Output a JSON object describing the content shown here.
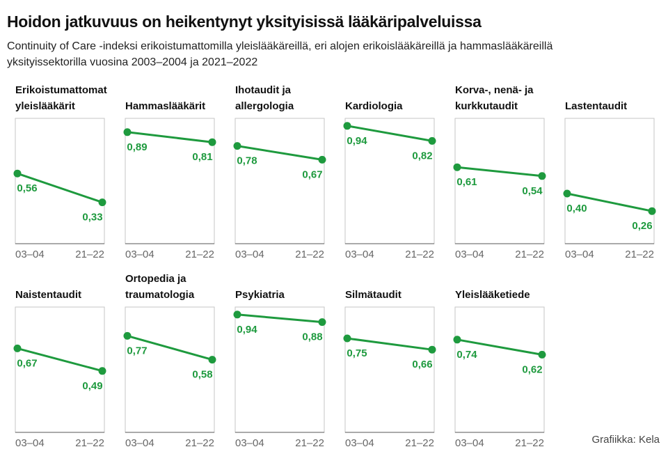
{
  "title": "Hoidon jatkuvuus on heikentynyt yksityisissä lääkäripalveluissa",
  "subtitle": "Continuity of Care -indeksi erikoistumattomilla yleislääkäreillä, eri alojen erikoislääkäreillä ja hammaslääkäreillä yksityissektorilla vuosina 2003–2004 ja 2021–2022",
  "source": "Grafiikka: Kela",
  "chart_data": [
    {
      "type": "line",
      "title": "Erikoistumattomat yleislääkärit",
      "categories": [
        "03–04",
        "21–22"
      ],
      "values": [
        0.56,
        0.33
      ],
      "value_labels": [
        "0,56",
        "0,33"
      ],
      "color": "#1e9a3e",
      "ylim": [
        0,
        1
      ]
    },
    {
      "type": "line",
      "title": "Hammaslääkärit",
      "categories": [
        "03–04",
        "21–22"
      ],
      "values": [
        0.89,
        0.81
      ],
      "value_labels": [
        "0,89",
        "0,81"
      ],
      "color": "#1e9a3e",
      "ylim": [
        0,
        1
      ]
    },
    {
      "type": "line",
      "title": "Ihotaudit ja allergologia",
      "categories": [
        "03–04",
        "21–22"
      ],
      "values": [
        0.78,
        0.67
      ],
      "value_labels": [
        "0,78",
        "0,67"
      ],
      "color": "#1e9a3e",
      "ylim": [
        0,
        1
      ]
    },
    {
      "type": "line",
      "title": "Kardiologia",
      "categories": [
        "03–04",
        "21–22"
      ],
      "values": [
        0.94,
        0.82
      ],
      "value_labels": [
        "0,94",
        "0,82"
      ],
      "color": "#1e9a3e",
      "ylim": [
        0,
        1
      ]
    },
    {
      "type": "line",
      "title": "Korva-, nenä- ja kurkkutaudit",
      "categories": [
        "03–04",
        "21–22"
      ],
      "values": [
        0.61,
        0.54
      ],
      "value_labels": [
        "0,61",
        "0,54"
      ],
      "color": "#1e9a3e",
      "ylim": [
        0,
        1
      ]
    },
    {
      "type": "line",
      "title": "Lastentaudit",
      "categories": [
        "03–04",
        "21–22"
      ],
      "values": [
        0.4,
        0.26
      ],
      "value_labels": [
        "0,40",
        "0,26"
      ],
      "color": "#1e9a3e",
      "ylim": [
        0,
        1
      ]
    },
    {
      "type": "line",
      "title": "Naistentaudit",
      "categories": [
        "03–04",
        "21–22"
      ],
      "values": [
        0.67,
        0.49
      ],
      "value_labels": [
        "0,67",
        "0,49"
      ],
      "color": "#1e9a3e",
      "ylim": [
        0,
        1
      ]
    },
    {
      "type": "line",
      "title": "Ortopedia ja traumatologia",
      "categories": [
        "03–04",
        "21–22"
      ],
      "values": [
        0.77,
        0.58
      ],
      "value_labels": [
        "0,77",
        "0,58"
      ],
      "color": "#1e9a3e",
      "ylim": [
        0,
        1
      ]
    },
    {
      "type": "line",
      "title": "Psykiatria",
      "categories": [
        "03–04",
        "21–22"
      ],
      "values": [
        0.94,
        0.88
      ],
      "value_labels": [
        "0,94",
        "0,88"
      ],
      "color": "#1e9a3e",
      "ylim": [
        0,
        1
      ]
    },
    {
      "type": "line",
      "title": "Silmätaudit",
      "categories": [
        "03–04",
        "21–22"
      ],
      "values": [
        0.75,
        0.66
      ],
      "value_labels": [
        "0,75",
        "0,66"
      ],
      "color": "#1e9a3e",
      "ylim": [
        0,
        1
      ]
    },
    {
      "type": "line",
      "title": "Yleislääketiede",
      "categories": [
        "03–04",
        "21–22"
      ],
      "values": [
        0.74,
        0.62
      ],
      "value_labels": [
        "0,74",
        "0,62"
      ],
      "color": "#1e9a3e",
      "ylim": [
        0,
        1
      ]
    }
  ]
}
